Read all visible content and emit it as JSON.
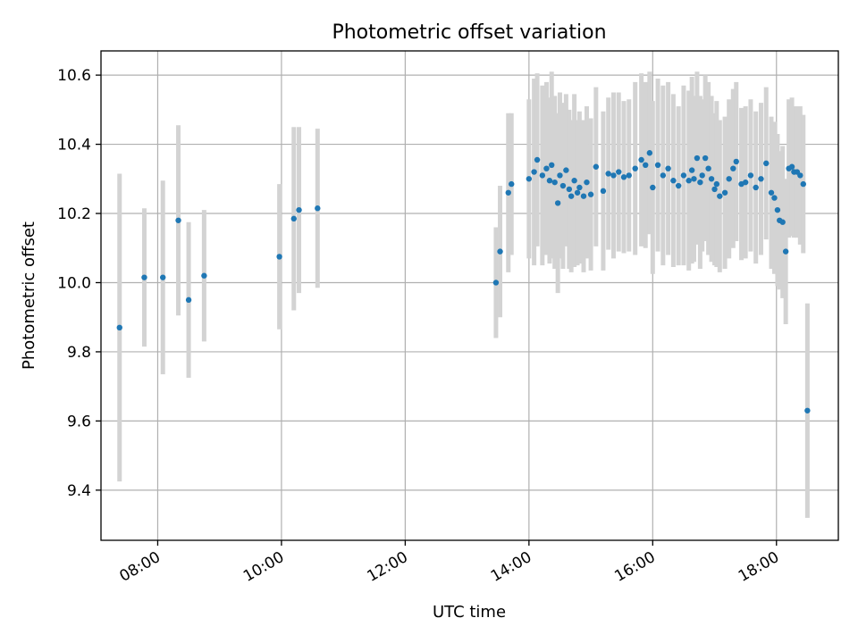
{
  "chart_data": {
    "type": "scatter",
    "title": "Photometric offset variation",
    "xlabel": "UTC time",
    "ylabel": "Photometric offset",
    "xlim": [
      "07:05",
      "19:00"
    ],
    "ylim": [
      9.255,
      10.67
    ],
    "x_ticks": [
      "08:00",
      "10:00",
      "12:00",
      "14:00",
      "16:00",
      "18:00"
    ],
    "y_ticks": [
      9.4,
      9.6,
      9.8,
      10.0,
      10.2,
      10.4,
      10.6
    ],
    "grid": true,
    "colors": {
      "point": "#1f77b4",
      "errorbar": "#d3d3d3",
      "grid": "#b0b0b0"
    },
    "series": [
      {
        "x": [
          "07:23",
          "07:47",
          "08:05",
          "08:20",
          "08:30",
          "08:45",
          "09:58",
          "10:12",
          "10:17",
          "10:35",
          "13:28",
          "13:32",
          "13:40",
          "13:43",
          "14:00",
          "14:05",
          "14:08",
          "14:13",
          "14:17",
          "14:20",
          "14:22",
          "14:25",
          "14:28",
          "14:30",
          "14:33",
          "14:36",
          "14:39",
          "14:41",
          "14:44",
          "14:47",
          "14:49",
          "14:53",
          "14:56",
          "15:00",
          "15:05",
          "15:12",
          "15:17",
          "15:22",
          "15:27",
          "15:32",
          "15:37",
          "15:43",
          "15:49",
          "15:53",
          "15:57",
          "16:00",
          "16:05",
          "16:10",
          "16:15",
          "16:20",
          "16:25",
          "16:30",
          "16:35",
          "16:38",
          "16:40",
          "16:43",
          "16:46",
          "16:48",
          "16:51",
          "16:54",
          "16:57",
          "17:00",
          "17:02",
          "17:05",
          "17:10",
          "17:14",
          "17:18",
          "17:21",
          "17:26",
          "17:30",
          "17:35",
          "17:40",
          "17:45",
          "17:50",
          "17:55",
          "17:58",
          "18:01",
          "18:03",
          "18:06",
          "18:09",
          "18:12",
          "18:15",
          "18:17",
          "18:20",
          "18:23",
          "18:26",
          "18:30"
        ],
        "y": [
          9.87,
          10.015,
          10.015,
          10.18,
          9.95,
          10.02,
          10.075,
          10.185,
          10.21,
          10.215,
          10.0,
          10.09,
          10.26,
          10.285,
          10.3,
          10.32,
          10.355,
          10.31,
          10.33,
          10.295,
          10.34,
          10.29,
          10.23,
          10.31,
          10.28,
          10.325,
          10.27,
          10.25,
          10.295,
          10.26,
          10.275,
          10.25,
          10.29,
          10.255,
          10.335,
          10.265,
          10.315,
          10.31,
          10.32,
          10.305,
          10.31,
          10.33,
          10.355,
          10.34,
          10.375,
          10.275,
          10.34,
          10.31,
          10.33,
          10.295,
          10.28,
          10.31,
          10.295,
          10.325,
          10.3,
          10.36,
          10.29,
          10.31,
          10.36,
          10.33,
          10.3,
          10.27,
          10.285,
          10.25,
          10.26,
          10.3,
          10.33,
          10.35,
          10.285,
          10.29,
          10.31,
          10.275,
          10.3,
          10.345,
          10.26,
          10.245,
          10.21,
          10.18,
          10.175,
          10.09,
          10.33,
          10.335,
          10.32,
          10.32,
          10.31,
          10.285,
          9.63
        ],
        "yerr": [
          0.445,
          0.2,
          0.28,
          0.275,
          0.225,
          0.19,
          0.21,
          0.265,
          0.24,
          0.23,
          0.16,
          0.19,
          0.23,
          0.205,
          0.23,
          0.27,
          0.25,
          0.26,
          0.25,
          0.24,
          0.27,
          0.25,
          0.26,
          0.24,
          0.24,
          0.22,
          0.23,
          0.22,
          0.25,
          0.21,
          0.22,
          0.22,
          0.22,
          0.22,
          0.23,
          0.23,
          0.22,
          0.24,
          0.23,
          0.22,
          0.22,
          0.25,
          0.25,
          0.24,
          0.235,
          0.25,
          0.25,
          0.26,
          0.25,
          0.25,
          0.23,
          0.26,
          0.26,
          0.27,
          0.24,
          0.25,
          0.25,
          0.22,
          0.24,
          0.25,
          0.24,
          0.22,
          0.24,
          0.22,
          0.22,
          0.23,
          0.23,
          0.23,
          0.22,
          0.22,
          0.22,
          0.22,
          0.22,
          0.22,
          0.22,
          0.22,
          0.22,
          0.2,
          0.22,
          0.21,
          0.2,
          0.2,
          0.19,
          0.19,
          0.2,
          0.2,
          0.31
        ]
      }
    ]
  }
}
